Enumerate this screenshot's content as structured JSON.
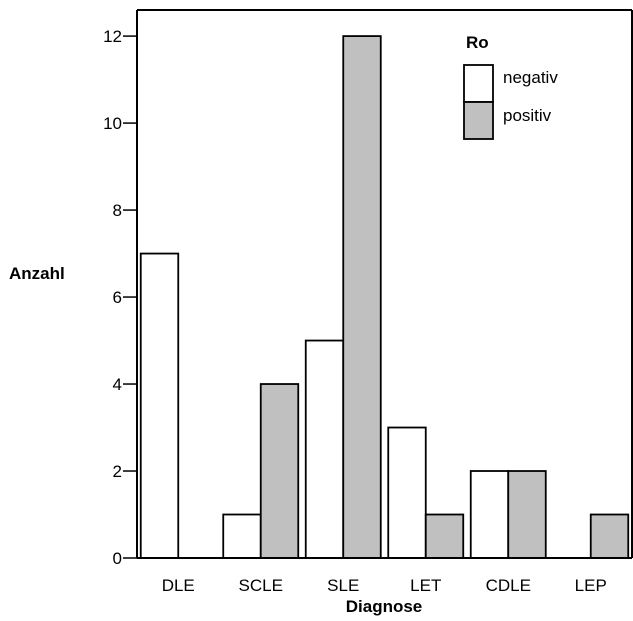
{
  "chart_data": {
    "type": "bar",
    "categories": [
      "DLE",
      "SCLE",
      "SLE",
      "LET",
      "CDLE",
      "LEP"
    ],
    "series": [
      {
        "name": "negativ",
        "values": [
          7,
          1,
          5,
          3,
          2,
          0
        ],
        "color": "#ffffff"
      },
      {
        "name": "positiv",
        "values": [
          0,
          4,
          12,
          1,
          2,
          1
        ],
        "color": "#c0c0c0"
      }
    ],
    "xlabel": "Diagnose",
    "ylabel": "Anzahl",
    "ylim": [
      0,
      12.6
    ],
    "yticks": [
      0,
      2,
      4,
      6,
      8,
      10,
      12
    ],
    "legend": {
      "title": "Ro",
      "placement": "top-right"
    },
    "grid": false
  }
}
